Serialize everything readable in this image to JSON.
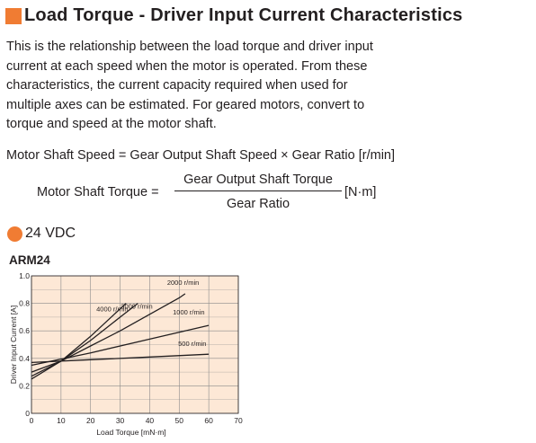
{
  "header": {
    "title": "Load Torque - Driver Input Current Characteristics"
  },
  "intro": {
    "lines": [
      "This is the relationship between the load torque and driver input",
      "current at each speed when the motor is operated. From these",
      "characteristics, the current capacity required when used for",
      "multiple axes can be estimated. For geared motors, convert to",
      "torque and speed at the motor shaft."
    ]
  },
  "formulas": {
    "speed": "Motor Shaft Speed = Gear Output Shaft Speed × Gear Ratio [r/min]",
    "torque_left": "Motor Shaft Torque =",
    "torque_numerator": "Gear Output Shaft Torque",
    "torque_denominator": "Gear Ratio",
    "torque_unit": "[N·m]"
  },
  "colors": {
    "accent": "#f07c33",
    "chart_fill": "#fde8d6",
    "grid": "#8a8a8a",
    "line": "#231f20"
  },
  "section": {
    "label": "24 VDC"
  },
  "chart_data": {
    "type": "line",
    "title": "ARM24",
    "xlabel": "Load Torque [mN·m]",
    "ylabel": "Driver Input Current [A]",
    "xlim": [
      0,
      70
    ],
    "ylim": [
      0,
      1.0
    ],
    "x_ticks": [
      "0",
      "10",
      "20",
      "30",
      "40",
      "50",
      "60",
      "70"
    ],
    "y_ticks": [
      "0",
      "0.2",
      "0.4",
      "0.6",
      "0.8",
      "1.0"
    ],
    "grid": true,
    "series": [
      {
        "name": "4000 r/min",
        "x": [
          0,
          10,
          20,
          28,
          32
        ],
        "y": [
          0.25,
          0.38,
          0.56,
          0.72,
          0.8
        ]
      },
      {
        "name": "3000 r/min",
        "x": [
          0,
          10,
          20,
          30,
          36
        ],
        "y": [
          0.27,
          0.38,
          0.53,
          0.7,
          0.8
        ]
      },
      {
        "name": "2000 r/min",
        "x": [
          0,
          10,
          20,
          30,
          40,
          50,
          52
        ],
        "y": [
          0.3,
          0.38,
          0.49,
          0.6,
          0.72,
          0.84,
          0.87
        ]
      },
      {
        "name": "1000 r/min",
        "x": [
          0,
          20,
          40,
          60
        ],
        "y": [
          0.35,
          0.44,
          0.54,
          0.64
        ]
      },
      {
        "name": "500 r/min",
        "x": [
          0,
          20,
          40,
          60
        ],
        "y": [
          0.37,
          0.39,
          0.41,
          0.43
        ]
      }
    ]
  }
}
